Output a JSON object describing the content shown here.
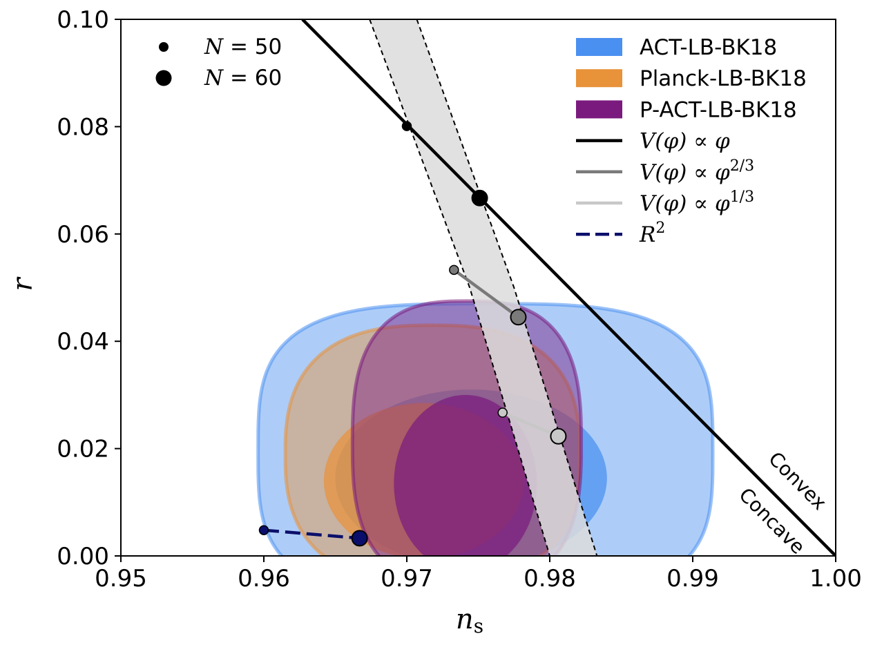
{
  "chart_data": {
    "type": "scatter",
    "title": "",
    "xlabel": "n_s",
    "ylabel": "r",
    "xlim": [
      0.95,
      1.0
    ],
    "ylim": [
      0.0,
      0.1
    ],
    "xticks": [
      "0.95",
      "0.96",
      "0.97",
      "0.98",
      "0.99",
      "1.00"
    ],
    "yticks": [
      "0.00",
      "0.02",
      "0.04",
      "0.06",
      "0.08",
      "0.10"
    ],
    "colors": {
      "act": "#4a90f0",
      "planck": "#e8923a",
      "pact": "#7a1a7e",
      "linear": "#000000",
      "two_thirds": "#7a7a7a",
      "one_third": "#c8c8c8",
      "r2": "#0b0f6b",
      "band": "#dcdcdc"
    },
    "contours": [
      {
        "name": "ACT-LB-BK18",
        "levels": [
          {
            "level": "95%",
            "cx": 0.9755,
            "cy": 0.0195,
            "rx": 0.0159,
            "ry": 0.0275,
            "squareness": 3.4
          },
          {
            "level": "68%",
            "cx": 0.9745,
            "cy": 0.0145,
            "rx": 0.0095,
            "ry": 0.0165,
            "squareness": 2.0
          }
        ]
      },
      {
        "name": "Planck-LB-BK18",
        "levels": [
          {
            "level": "95%",
            "cx": 0.9718,
            "cy": 0.019,
            "rx": 0.0103,
            "ry": 0.024,
            "squareness": 2.6
          },
          {
            "level": "68%",
            "cx": 0.9712,
            "cy": 0.014,
            "rx": 0.007,
            "ry": 0.0145,
            "squareness": 2.0
          }
        ]
      },
      {
        "name": "P-ACT-LB-BK18",
        "levels": [
          {
            "level": "95%",
            "cx": 0.9742,
            "cy": 0.021,
            "rx": 0.008,
            "ry": 0.0265,
            "squareness": 2.8
          },
          {
            "level": "68%",
            "cx": 0.9741,
            "cy": 0.0135,
            "rx": 0.005,
            "ry": 0.0165,
            "squareness": 2.0
          }
        ]
      }
    ],
    "band": {
      "left": [
        [
          0.9674,
          0.1
        ],
        [
          0.9744,
          0.05
        ],
        [
          0.98,
          0.0
        ]
      ],
      "right": [
        [
          0.9707,
          0.1
        ],
        [
          0.9775,
          0.05
        ],
        [
          0.9833,
          0.0
        ]
      ]
    },
    "boundary_line": {
      "x": [
        0.9627,
        1.0
      ],
      "y": [
        0.1,
        0.0
      ]
    },
    "models": [
      {
        "name": "V(φ) ∝ φ",
        "color_key": "linear",
        "dash": false,
        "N50": [
          0.97,
          0.0801
        ],
        "N60": [
          0.9751,
          0.0667
        ]
      },
      {
        "name": "V(φ) ∝ φ^{2/3}",
        "color_key": "two_thirds",
        "dash": false,
        "N50": [
          0.9733,
          0.0533
        ],
        "N60": [
          0.9778,
          0.0445
        ]
      },
      {
        "name": "V(φ) ∝ φ^{1/3}",
        "color_key": "one_third",
        "dash": false,
        "N50": [
          0.9767,
          0.0267
        ],
        "N60": [
          0.9806,
          0.0223
        ]
      },
      {
        "name": "R^2",
        "color_key": "r2",
        "dash": true,
        "N50": [
          0.96,
          0.0048
        ],
        "N60": [
          0.9667,
          0.0033
        ]
      }
    ],
    "efold_legend": [
      {
        "label": "N = 50",
        "lhs": "N",
        "rhs": " = 50",
        "size": "small"
      },
      {
        "label": "N = 60",
        "lhs": "N",
        "rhs": " = 60",
        "size": "large"
      }
    ],
    "legend": [
      {
        "label": "ACT-LB-BK18",
        "kind": "patch",
        "color_key": "act"
      },
      {
        "label": "Planck-LB-BK18",
        "kind": "patch",
        "color_key": "planck"
      },
      {
        "label": "P-ACT-LB-BK18",
        "kind": "patch",
        "color_key": "pact"
      },
      {
        "label": "V(φ) ∝ φ",
        "kind": "line",
        "color_key": "linear",
        "base": "V(φ) ∝ φ",
        "sup": ""
      },
      {
        "label": "V(φ) ∝ φ^{2/3}",
        "kind": "line",
        "color_key": "two_thirds",
        "base": "V(φ) ∝ φ",
        "sup": "2/3"
      },
      {
        "label": "V(φ) ∝ φ^{1/3}",
        "kind": "line",
        "color_key": "one_third",
        "base": "V(φ) ∝ φ",
        "sup": "1/3"
      },
      {
        "label": "R^2",
        "kind": "dash",
        "color_key": "r2",
        "base": "R",
        "sup": "2"
      }
    ],
    "region_labels": {
      "convex": "Convex",
      "concave": "Concave"
    },
    "legend_placement": "top-right"
  }
}
